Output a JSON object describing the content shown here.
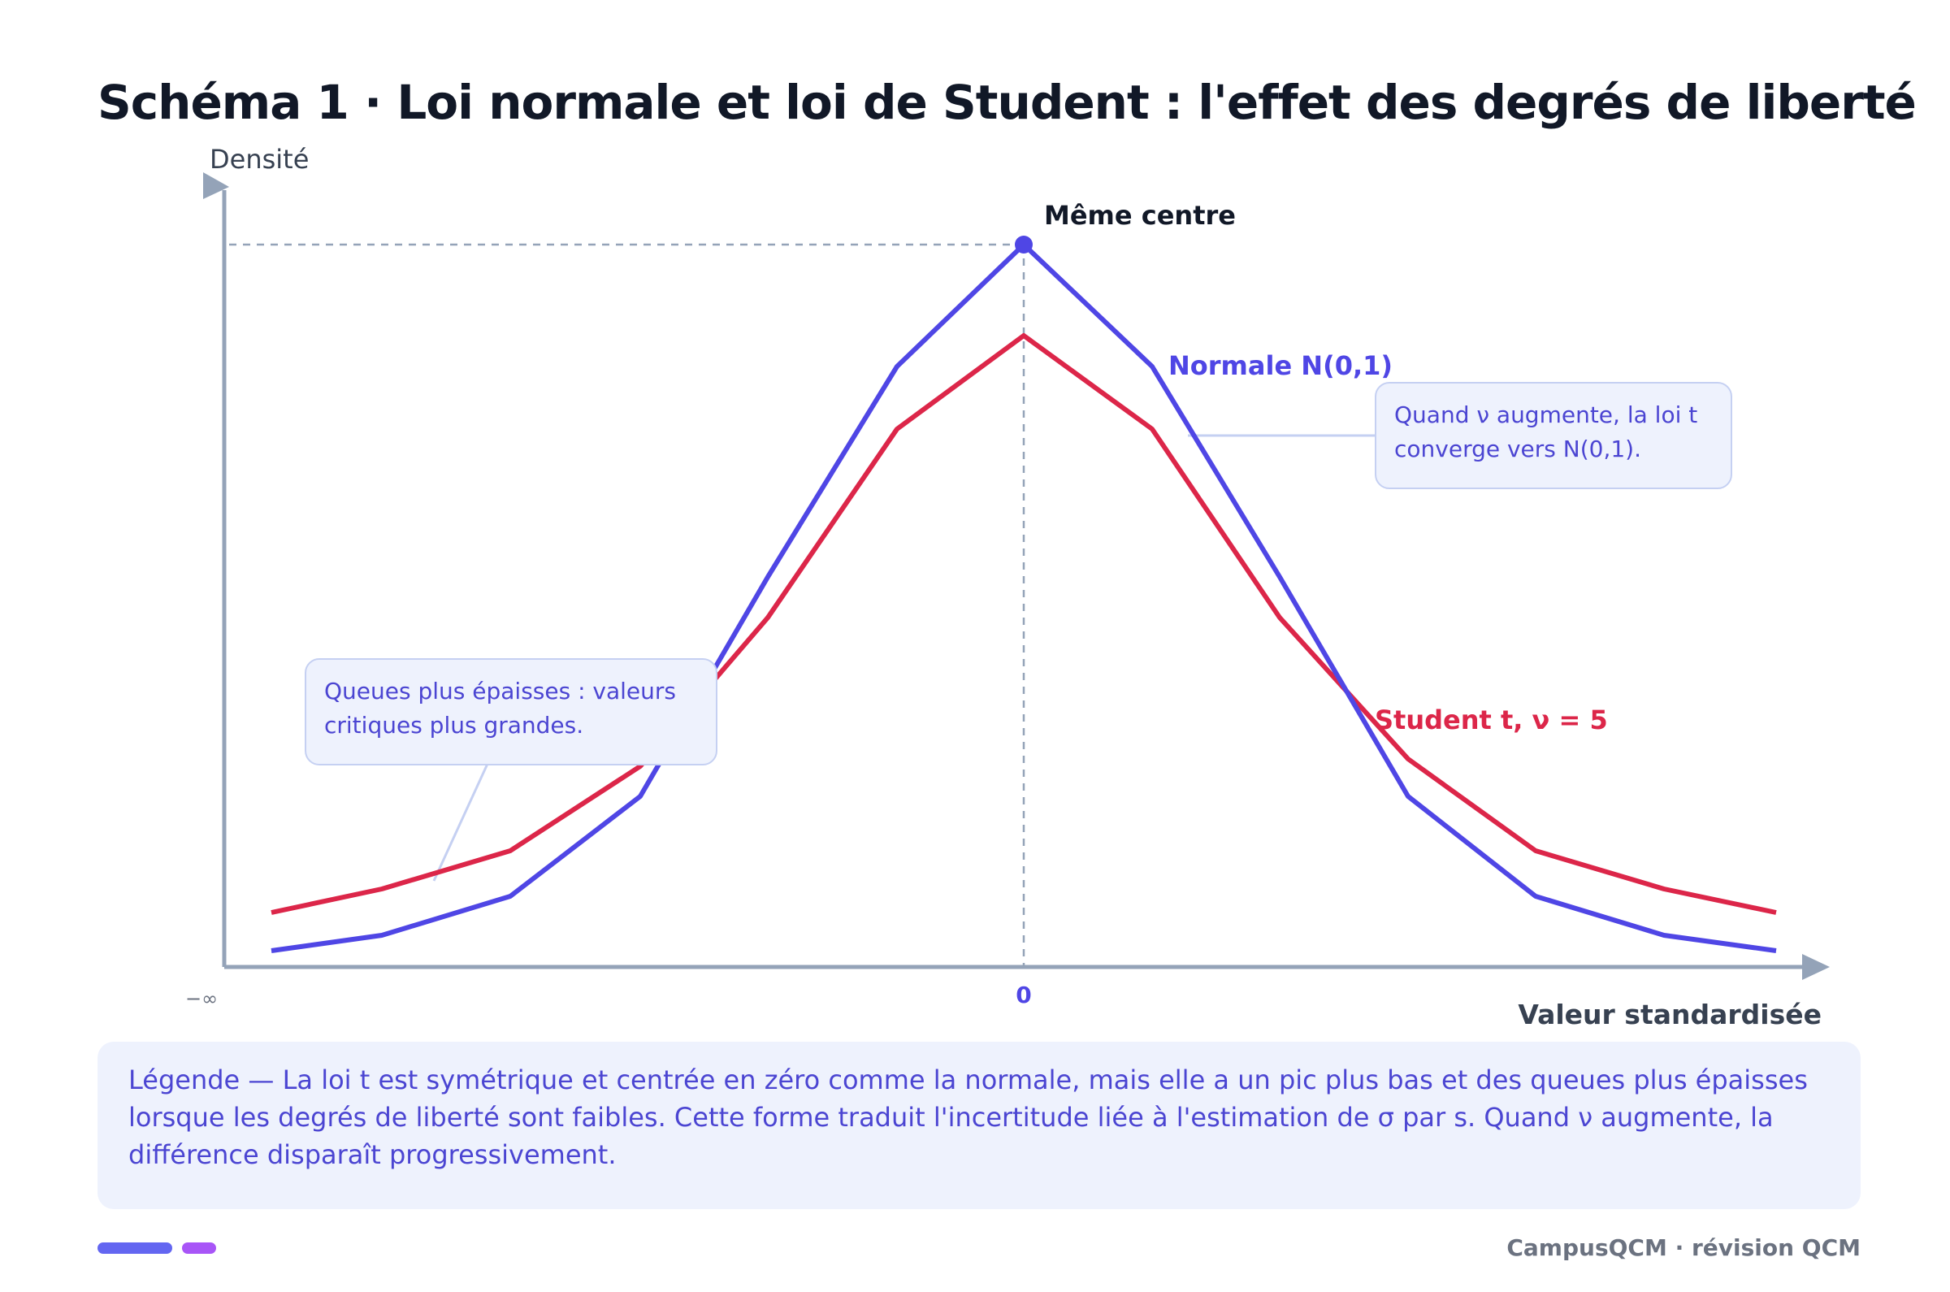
{
  "title": "Schéma 1 · Loi normale et loi de Student : l'effet des degrés de liberté",
  "axes": {
    "y_label": "Densité",
    "x_label": "Valeur standardisée",
    "x_left_tick": "−∞",
    "x_center_tick": "0"
  },
  "peak_label": "Même centre",
  "curves": {
    "normal": {
      "label": "Normale N(0,1)",
      "color": "#4f46e5"
    },
    "student": {
      "label": "Student t, ν = 5",
      "color": "#dc2649"
    }
  },
  "callouts": {
    "convergence": "Quand ν augmente, la loi t converge vers N(0,1).",
    "tails": "Queues plus épaisses : valeurs critiques plus grandes."
  },
  "legend": "Légende — La loi t est symétrique et centrée en zéro comme la normale, mais elle a un pic plus bas et des queues plus épaisses lorsque les degrés de liberté sont faibles. Cette forme traduit l'incertitude liée à l'estimation de σ par s. Quand ν augmente, la différence disparaît progressivement.",
  "footer": "CampusQCM · révision QCM",
  "colors": {
    "axis": "#94a3b8",
    "accent_bar_1": "#6366f1",
    "accent_bar_2": "#a855f7"
  }
}
